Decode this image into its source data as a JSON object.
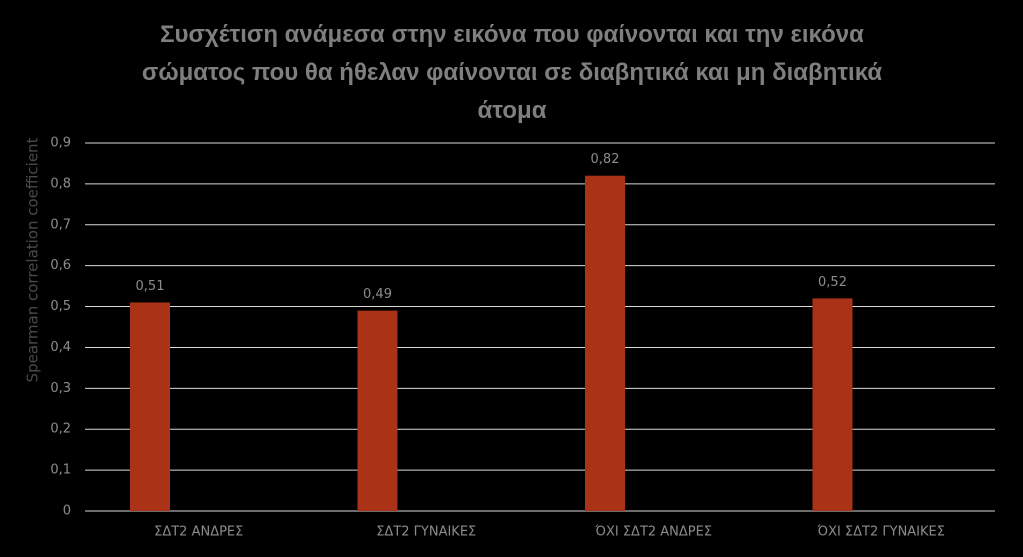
{
  "chart_data": {
    "type": "bar",
    "title": "Συσχέτιση ανάμεσα στην εικόνα που φαίνονται και την εικόνα σώματος που θα ήθελαν φαίνονται σε διαβητικά και μη διαβητικά άτομα",
    "y_label": "Spearman correlation coefficient",
    "categories": [
      "ΣΔΤ2 ΑΝΔΡΕΣ",
      "ΣΔΤ2 ΓΥΝΑΙΚΕΣ",
      "ΌΧΙ ΣΔΤ2 ΑΝΔΡΕΣ",
      "ΌΧΙ ΣΔΤ2 ΓΥΝΑΙΚΕΣ"
    ],
    "values": [
      0.51,
      0.49,
      0.82,
      0.52
    ],
    "value_labels": [
      "0,51",
      "0,49",
      "0,82",
      "0,52"
    ],
    "color": "#a93217",
    "ylim": [
      0,
      0.9
    ],
    "yticks": [
      0,
      {
        "value": 0.1,
        "label": "0,1"
      },
      {
        "value": 0.2,
        "label": "0,2"
      },
      {
        "value": 0.3,
        "label": "0,3"
      },
      {
        "value": 0.4,
        "label": "0,4"
      },
      {
        "value": 0.5,
        "label": "0,5"
      },
      {
        "value": 0.6,
        "label": "0,6"
      },
      {
        "value": 0.7,
        "label": "0,7"
      },
      {
        "value": 0.8,
        "label": "0,8"
      },
      {
        "value": 0.9,
        "label": "0,9"
      }
    ],
    "grid": true
  }
}
